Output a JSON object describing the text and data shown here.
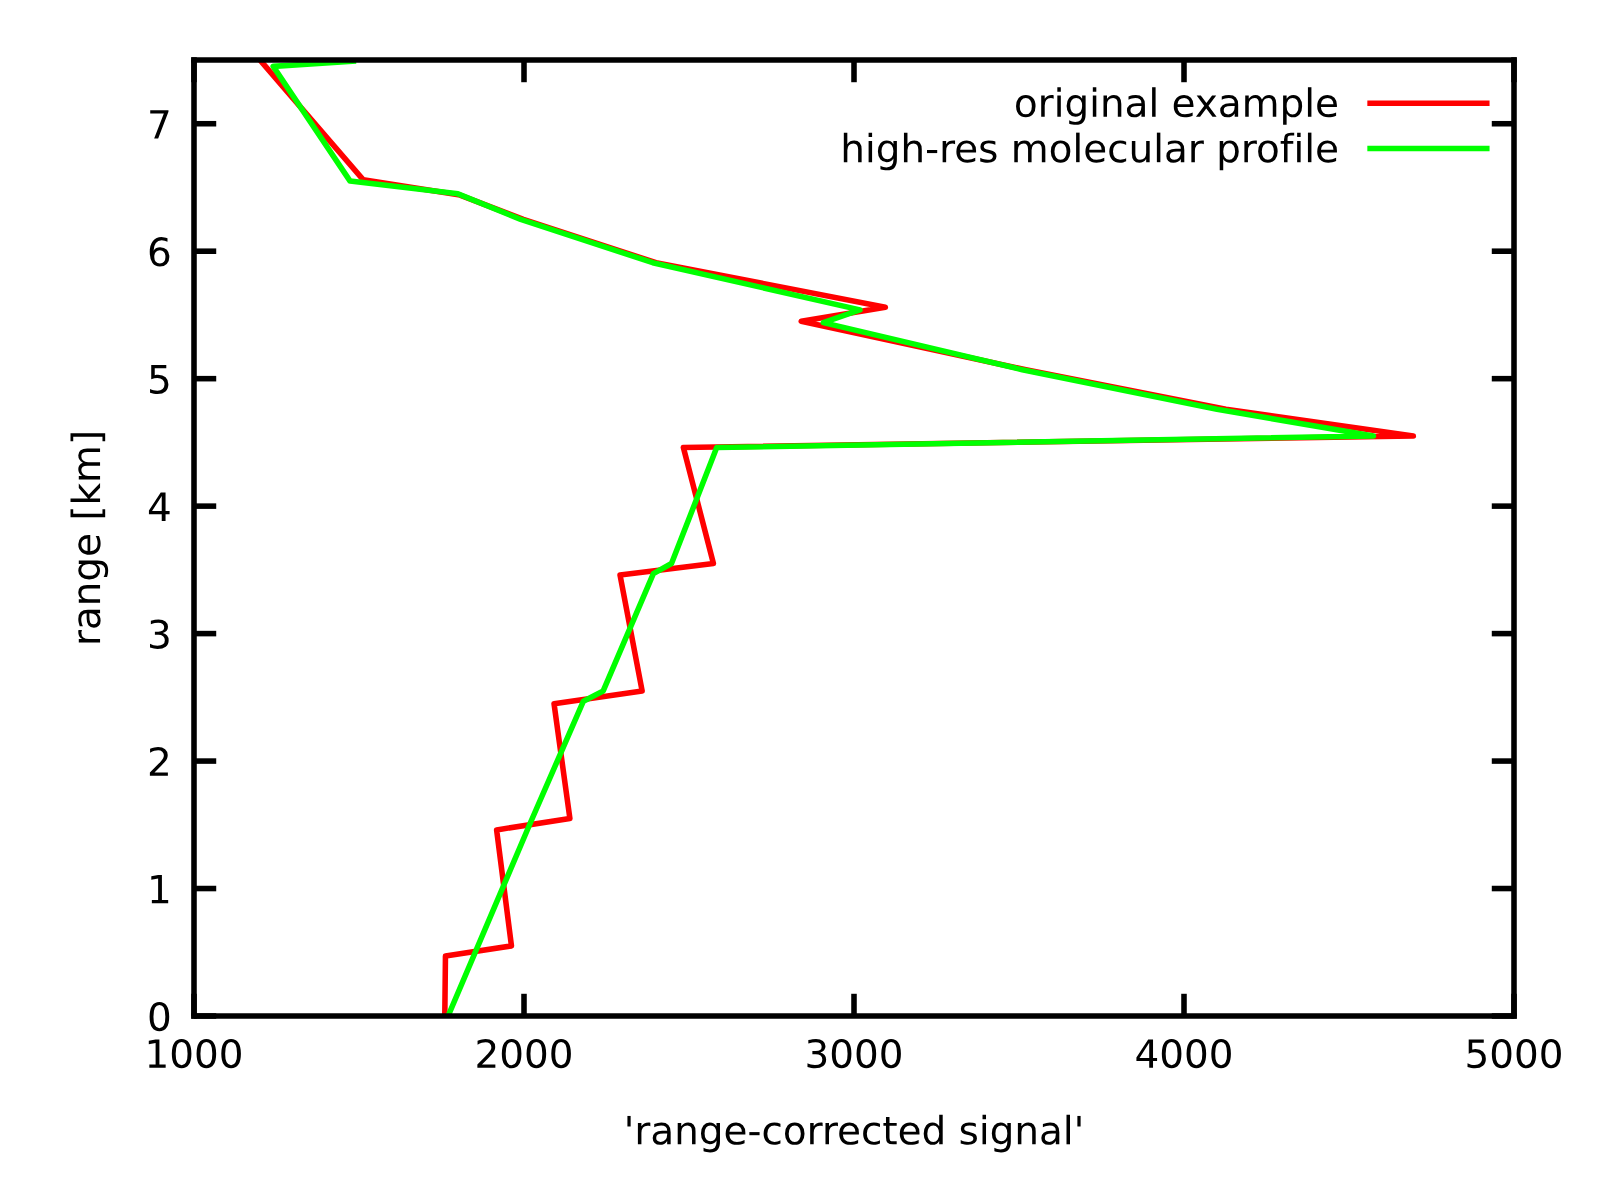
{
  "chart_data": {
    "type": "line",
    "xlabel": "'range-corrected signal'",
    "ylabel": "range [km]",
    "xlim": [
      1000,
      5000
    ],
    "xticks": [
      1000,
      2000,
      3000,
      4000,
      5000
    ],
    "ylim": [
      0,
      7.5
    ],
    "yticks": [
      0,
      1,
      2,
      3,
      4,
      5,
      6,
      7
    ],
    "grid": false,
    "legend": "top right",
    "marker": "none",
    "line_style": "solid",
    "series": [
      {
        "name": "original example",
        "color": "#ff0000",
        "x": [
          1760,
          1762,
          1962,
          1917,
          2139,
          2091,
          2358,
          2291,
          2574,
          2483,
          4695,
          4127,
          3521,
          2840,
          3095,
          2400,
          1998,
          1806,
          1513,
          1210,
          1200
        ],
        "values": [
          0,
          0.47,
          0.55,
          1.46,
          1.55,
          2.45,
          2.55,
          3.46,
          3.55,
          4.46,
          4.55,
          4.76,
          5.07,
          5.45,
          5.56,
          5.91,
          6.25,
          6.44,
          6.56,
          7.47,
          7.5
        ]
      },
      {
        "name": "high-res molecular profile",
        "color": "#00ff00",
        "x": [
          1770,
          2020,
          2180,
          2240,
          2392,
          2447,
          2584,
          4574,
          4100,
          3510,
          2907,
          3018,
          2390,
          1990,
          1800,
          1473,
          1240,
          1483
        ],
        "values": [
          0,
          1.52,
          2.47,
          2.55,
          3.47,
          3.55,
          4.46,
          4.55,
          4.76,
          5.07,
          5.44,
          5.54,
          5.91,
          6.25,
          6.45,
          6.55,
          7.45,
          7.49
        ]
      }
    ]
  }
}
